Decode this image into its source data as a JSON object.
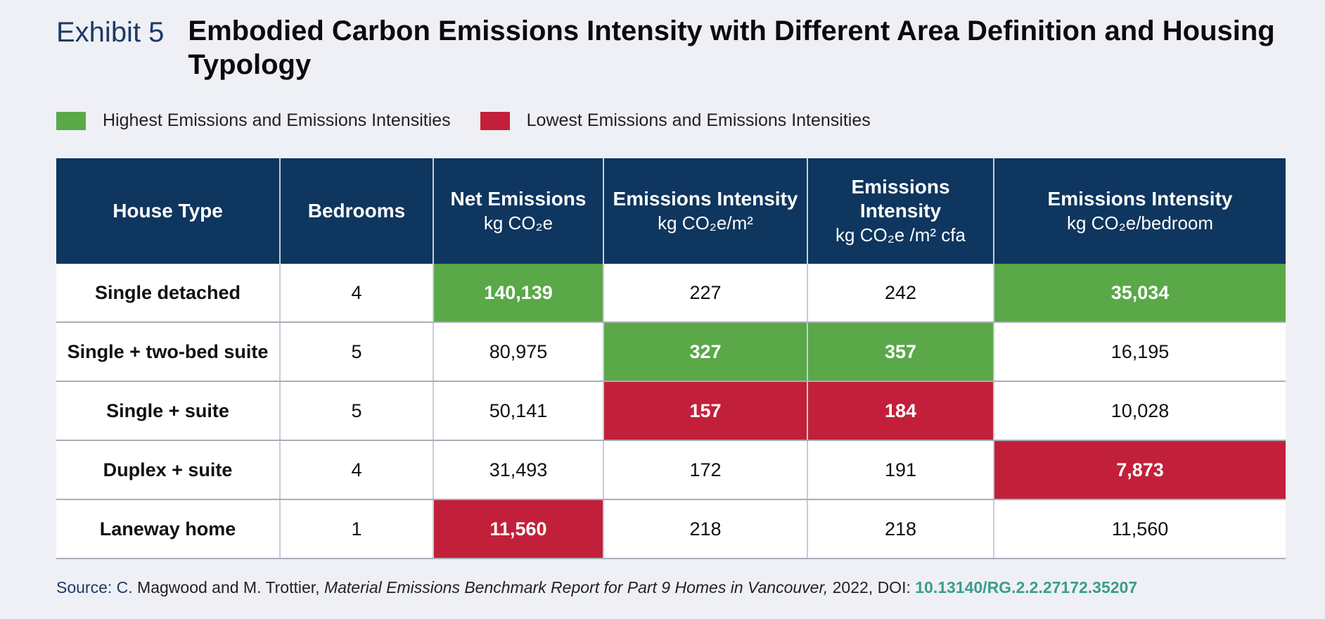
{
  "exhibit_label": "Exhibit 5",
  "title": "Embodied Carbon Emissions Intensity with Different Area Definition and Housing Typology",
  "legend": {
    "high_label": "Highest Emissions and Emissions Intensities",
    "low_label": "Lowest Emissions and Emissions Intensities",
    "high_color": "#5aa848",
    "low_color": "#c2203a",
    "header_color": "#0e365e"
  },
  "columns": [
    {
      "main": "House Type",
      "unit": ""
    },
    {
      "main": "Bedrooms",
      "unit": ""
    },
    {
      "main": "Net Emissions",
      "unit": "kg CO₂e"
    },
    {
      "main": "Emissions Intensity",
      "unit": "kg CO₂e/m²"
    },
    {
      "main": "Emissions Intensity",
      "unit": "kg CO₂e /m² cfa"
    },
    {
      "main": "Emissions Intensity",
      "unit": "kg CO₂e/bedroom"
    }
  ],
  "chart_data": {
    "type": "table",
    "rows": [
      {
        "cells": [
          "Single detached",
          "4",
          "140,139",
          "227",
          "242",
          "35,034"
        ],
        "highlight": [
          "",
          "",
          "high",
          "",
          "",
          "high"
        ]
      },
      {
        "cells": [
          "Single + two-bed suite",
          "5",
          "80,975",
          "327",
          "357",
          "16,195"
        ],
        "highlight": [
          "",
          "",
          "",
          "high",
          "high",
          ""
        ]
      },
      {
        "cells": [
          "Single + suite",
          "5",
          "50,141",
          "157",
          "184",
          "10,028"
        ],
        "highlight": [
          "",
          "",
          "",
          "low",
          "low",
          ""
        ]
      },
      {
        "cells": [
          "Duplex + suite",
          "4",
          "31,493",
          "172",
          "191",
          "7,873"
        ],
        "highlight": [
          "",
          "",
          "",
          "",
          "",
          "low"
        ]
      },
      {
        "cells": [
          "Laneway home",
          "1",
          "11,560",
          "218",
          "218",
          "11,560"
        ],
        "highlight": [
          "",
          "",
          "low",
          "",
          "",
          ""
        ]
      }
    ]
  },
  "source": {
    "label": "Source: C.",
    "authors": " Magwood and M. Trottier, ",
    "publication": "Material Emissions Benchmark Report for Part 9 Homes in Vancouver,",
    "year_doi": " 2022, DOI: ",
    "doi": "10.13140/RG.2.2.27172.35207"
  }
}
